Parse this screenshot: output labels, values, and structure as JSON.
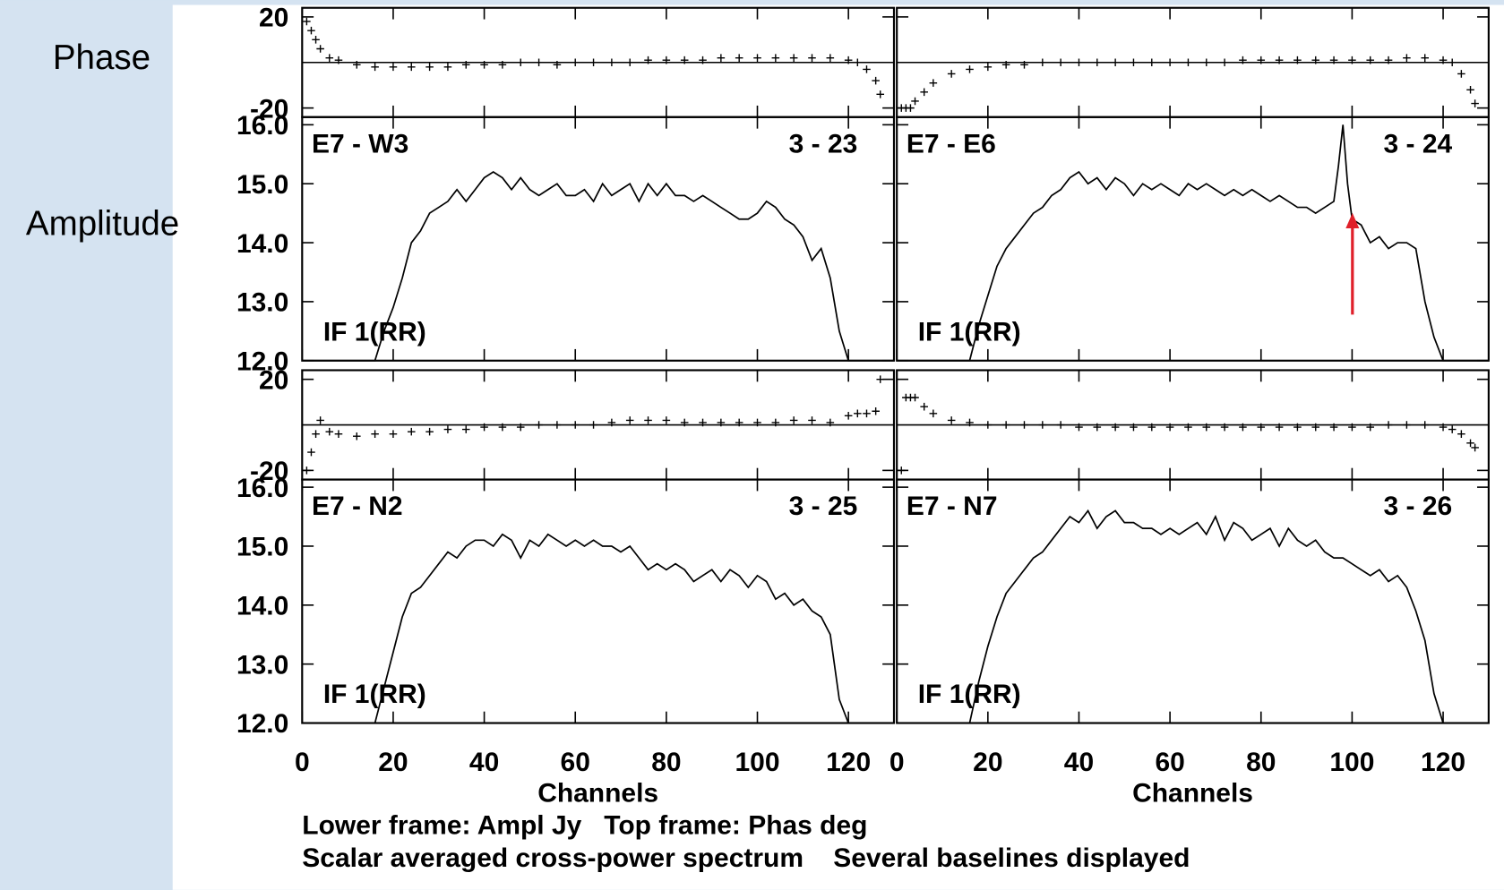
{
  "side_labels": {
    "phase": "Phase",
    "amplitude": "Amplitude"
  },
  "footer": [
    "Lower frame: Ampl Jy   Top frame: Phas deg",
    "Scalar averaged cross-power spectrum    Several baselines displayed"
  ],
  "chart_data": [
    {
      "type": "line",
      "baseline": "E7 - W3",
      "baseline_number": "3 - 23",
      "polarization": "IF 1(RR)",
      "xlim": [
        0,
        130
      ],
      "xticks": [
        0,
        20,
        40,
        60,
        80,
        100,
        120
      ],
      "xtick_labels": false,
      "ytick_labels": true,
      "phase": {
        "ylim": [
          -24,
          24
        ],
        "yticks": [
          20,
          -20
        ],
        "reference_line": 0,
        "x": [
          1,
          2,
          3,
          4,
          6,
          8,
          12,
          16,
          20,
          24,
          28,
          32,
          36,
          40,
          44,
          48,
          52,
          56,
          60,
          64,
          68,
          72,
          76,
          80,
          84,
          88,
          92,
          96,
          100,
          104,
          108,
          112,
          116,
          120,
          122,
          124,
          126,
          127
        ],
        "values": [
          18,
          14,
          10,
          6,
          2,
          1,
          -1,
          -2,
          -2,
          -2,
          -2,
          -2,
          -1,
          -1,
          -1,
          0,
          0,
          -1,
          0,
          0,
          0,
          0,
          1,
          1,
          1,
          1,
          2,
          2,
          2,
          2,
          2,
          2,
          2,
          1,
          0,
          -3,
          -8,
          -14
        ]
      },
      "amplitude": {
        "ylim": [
          12,
          16.13
        ],
        "yticks": [
          {
            "value": 12,
            "label": "12.0"
          },
          {
            "value": 13,
            "label": "13.0"
          },
          {
            "value": 14,
            "label": "14.0"
          },
          {
            "value": 15,
            "label": "15.0"
          },
          {
            "value": 16,
            "label": "16.0"
          }
        ],
        "x": [
          0,
          16,
          18,
          20,
          22,
          24,
          26,
          28,
          30,
          32,
          34,
          36,
          38,
          40,
          42,
          44,
          46,
          48,
          50,
          52,
          54,
          56,
          58,
          60,
          62,
          64,
          66,
          68,
          70,
          72,
          74,
          76,
          78,
          80,
          82,
          84,
          86,
          88,
          90,
          92,
          94,
          96,
          98,
          100,
          102,
          104,
          106,
          108,
          110,
          112,
          114,
          116,
          118,
          120,
          122,
          130
        ],
        "values": [
          12.0,
          12.0,
          12.5,
          12.9,
          13.4,
          14.0,
          14.2,
          14.5,
          14.6,
          14.7,
          14.9,
          14.7,
          14.9,
          15.1,
          15.2,
          15.1,
          14.9,
          15.1,
          14.9,
          14.8,
          14.9,
          15.0,
          14.8,
          14.8,
          14.9,
          14.7,
          15.0,
          14.8,
          14.9,
          15.0,
          14.7,
          15.0,
          14.8,
          15.0,
          14.8,
          14.8,
          14.7,
          14.8,
          14.7,
          14.6,
          14.5,
          14.4,
          14.4,
          14.5,
          14.7,
          14.6,
          14.4,
          14.3,
          14.1,
          13.7,
          13.9,
          13.4,
          12.5,
          12.0,
          12.0,
          12.0
        ]
      }
    },
    {
      "type": "line",
      "baseline": "E7 - E6",
      "baseline_number": "3 - 24",
      "polarization": "IF 1(RR)",
      "xlim": [
        0,
        130
      ],
      "xticks": [
        0,
        20,
        40,
        60,
        80,
        100,
        120
      ],
      "xtick_labels": false,
      "ytick_labels": false,
      "phase": {
        "ylim": [
          -24,
          24
        ],
        "yticks": [
          20,
          -20
        ],
        "reference_line": 0,
        "x": [
          1,
          2,
          3,
          4,
          6,
          8,
          12,
          16,
          20,
          24,
          28,
          32,
          36,
          40,
          44,
          48,
          52,
          56,
          60,
          64,
          68,
          72,
          76,
          80,
          84,
          88,
          92,
          96,
          100,
          104,
          108,
          112,
          116,
          120,
          122,
          124,
          126,
          127
        ],
        "values": [
          -20,
          -20,
          -20,
          -17,
          -13,
          -9,
          -5,
          -3,
          -2,
          -1,
          -1,
          0,
          0,
          0,
          0,
          0,
          0,
          0,
          0,
          0,
          0,
          0,
          1,
          1,
          1,
          1,
          1,
          1,
          1,
          1,
          1,
          2,
          2,
          1,
          0,
          -5,
          -12,
          -18
        ]
      },
      "amplitude": {
        "ylim": [
          12,
          16.13
        ],
        "yticks": [
          {
            "value": 12,
            "label": "12.0"
          },
          {
            "value": 13,
            "label": "13.0"
          },
          {
            "value": 14,
            "label": "14.0"
          },
          {
            "value": 15,
            "label": "15.0"
          },
          {
            "value": 16,
            "label": "16.0"
          }
        ],
        "x": [
          0,
          16,
          18,
          20,
          22,
          24,
          26,
          28,
          30,
          32,
          34,
          36,
          38,
          40,
          42,
          44,
          46,
          48,
          50,
          52,
          54,
          56,
          58,
          60,
          62,
          64,
          66,
          68,
          70,
          72,
          74,
          76,
          78,
          80,
          82,
          84,
          86,
          88,
          90,
          92,
          94,
          96,
          97,
          98,
          99,
          100,
          102,
          104,
          106,
          108,
          110,
          112,
          114,
          116,
          118,
          120,
          122,
          130
        ],
        "values": [
          12.0,
          12.0,
          12.6,
          13.1,
          13.6,
          13.9,
          14.1,
          14.3,
          14.5,
          14.6,
          14.8,
          14.9,
          15.1,
          15.2,
          15.0,
          15.1,
          14.9,
          15.1,
          15.0,
          14.8,
          15.0,
          14.9,
          15.0,
          14.9,
          14.8,
          15.0,
          14.9,
          15.0,
          14.9,
          14.8,
          14.9,
          14.8,
          14.9,
          14.8,
          14.7,
          14.8,
          14.7,
          14.6,
          14.6,
          14.5,
          14.6,
          14.7,
          15.3,
          16.0,
          15.0,
          14.4,
          14.3,
          14.0,
          14.1,
          13.9,
          14.0,
          14.0,
          13.9,
          13.0,
          12.4,
          12.0,
          12.0,
          12.0
        ]
      }
    },
    {
      "type": "line",
      "baseline": "E7 - N2",
      "baseline_number": "3 - 25",
      "polarization": "IF 1(RR)",
      "xlim": [
        0,
        130
      ],
      "xticks": [
        0,
        20,
        40,
        60,
        80,
        100,
        120
      ],
      "xtick_labels": true,
      "ytick_labels": true,
      "xlabel": "Channels",
      "phase": {
        "ylim": [
          -24,
          24
        ],
        "yticks": [
          20,
          -20
        ],
        "reference_line": 0,
        "x": [
          1,
          2,
          3,
          4,
          6,
          8,
          12,
          16,
          20,
          24,
          28,
          32,
          36,
          40,
          44,
          48,
          52,
          56,
          60,
          64,
          68,
          72,
          76,
          80,
          84,
          88,
          92,
          96,
          100,
          104,
          108,
          112,
          116,
          120,
          122,
          124,
          126,
          127
        ],
        "values": [
          -20,
          -12,
          -4,
          2,
          -3,
          -4,
          -5,
          -4,
          -4,
          -3,
          -3,
          -2,
          -2,
          -1,
          -1,
          -1,
          0,
          0,
          0,
          0,
          1,
          2,
          2,
          2,
          1,
          1,
          1,
          1,
          1,
          1,
          2,
          2,
          1,
          4,
          5,
          5,
          6,
          20
        ]
      },
      "amplitude": {
        "ylim": [
          12,
          16.13
        ],
        "yticks": [
          {
            "value": 12,
            "label": "12.0"
          },
          {
            "value": 13,
            "label": "13.0"
          },
          {
            "value": 14,
            "label": "14.0"
          },
          {
            "value": 15,
            "label": "15.0"
          },
          {
            "value": 16,
            "label": "16.0"
          }
        ],
        "x": [
          0,
          16,
          18,
          20,
          22,
          24,
          26,
          28,
          30,
          32,
          34,
          36,
          38,
          40,
          42,
          44,
          46,
          48,
          50,
          52,
          54,
          56,
          58,
          60,
          62,
          64,
          66,
          68,
          70,
          72,
          74,
          76,
          78,
          80,
          82,
          84,
          86,
          88,
          90,
          92,
          94,
          96,
          98,
          100,
          102,
          104,
          106,
          108,
          110,
          112,
          114,
          116,
          118,
          120,
          122,
          130
        ],
        "values": [
          12.0,
          12.0,
          12.6,
          13.2,
          13.8,
          14.2,
          14.3,
          14.5,
          14.7,
          14.9,
          14.8,
          15.0,
          15.1,
          15.1,
          15.0,
          15.2,
          15.1,
          14.8,
          15.1,
          15.0,
          15.2,
          15.1,
          15.0,
          15.1,
          15.0,
          15.1,
          15.0,
          15.0,
          14.9,
          15.0,
          14.8,
          14.6,
          14.7,
          14.6,
          14.7,
          14.6,
          14.4,
          14.5,
          14.6,
          14.4,
          14.6,
          14.5,
          14.3,
          14.5,
          14.4,
          14.1,
          14.2,
          14.0,
          14.1,
          13.9,
          13.8,
          13.5,
          12.4,
          12.0,
          12.0,
          12.0
        ]
      }
    },
    {
      "type": "line",
      "baseline": "E7 - N7",
      "baseline_number": "3 - 26",
      "polarization": "IF 1(RR)",
      "xlim": [
        0,
        130
      ],
      "xticks": [
        0,
        20,
        40,
        60,
        80,
        100,
        120
      ],
      "xtick_labels": true,
      "ytick_labels": false,
      "xlabel": "Channels",
      "phase": {
        "ylim": [
          -24,
          24
        ],
        "yticks": [
          20,
          -20
        ],
        "reference_line": 0,
        "x": [
          1,
          2,
          3,
          4,
          6,
          8,
          12,
          16,
          20,
          24,
          28,
          32,
          36,
          40,
          44,
          48,
          52,
          56,
          60,
          64,
          68,
          72,
          76,
          80,
          84,
          88,
          92,
          96,
          100,
          104,
          108,
          112,
          116,
          120,
          122,
          124,
          126,
          127
        ],
        "values": [
          -20,
          12,
          12,
          12,
          8,
          5,
          2,
          1,
          0,
          0,
          0,
          0,
          0,
          -1,
          -1,
          -1,
          -1,
          -1,
          -1,
          -1,
          -1,
          -1,
          -1,
          -1,
          -1,
          -1,
          -1,
          -1,
          -1,
          -1,
          0,
          0,
          0,
          -1,
          -2,
          -4,
          -8,
          -10
        ]
      },
      "amplitude": {
        "ylim": [
          12,
          16.13
        ],
        "yticks": [
          {
            "value": 12,
            "label": "12.0"
          },
          {
            "value": 13,
            "label": "13.0"
          },
          {
            "value": 14,
            "label": "14.0"
          },
          {
            "value": 15,
            "label": "15.0"
          },
          {
            "value": 16,
            "label": "16.0"
          }
        ],
        "x": [
          0,
          16,
          18,
          20,
          22,
          24,
          26,
          28,
          30,
          32,
          34,
          36,
          38,
          40,
          42,
          44,
          46,
          48,
          50,
          52,
          54,
          56,
          58,
          60,
          62,
          64,
          66,
          68,
          70,
          72,
          74,
          76,
          78,
          80,
          82,
          84,
          86,
          88,
          90,
          92,
          94,
          96,
          98,
          100,
          102,
          104,
          106,
          108,
          110,
          112,
          114,
          116,
          118,
          120,
          122,
          130
        ],
        "values": [
          12.0,
          12.0,
          12.7,
          13.3,
          13.8,
          14.2,
          14.4,
          14.6,
          14.8,
          14.9,
          15.1,
          15.3,
          15.5,
          15.4,
          15.6,
          15.3,
          15.5,
          15.6,
          15.4,
          15.4,
          15.3,
          15.3,
          15.2,
          15.3,
          15.2,
          15.3,
          15.4,
          15.2,
          15.5,
          15.1,
          15.4,
          15.3,
          15.1,
          15.2,
          15.3,
          15.0,
          15.3,
          15.1,
          15.0,
          15.1,
          14.9,
          14.8,
          14.8,
          14.7,
          14.6,
          14.5,
          14.6,
          14.4,
          14.5,
          14.3,
          13.9,
          13.4,
          12.5,
          12.0,
          12.0,
          12.0
        ]
      }
    }
  ]
}
